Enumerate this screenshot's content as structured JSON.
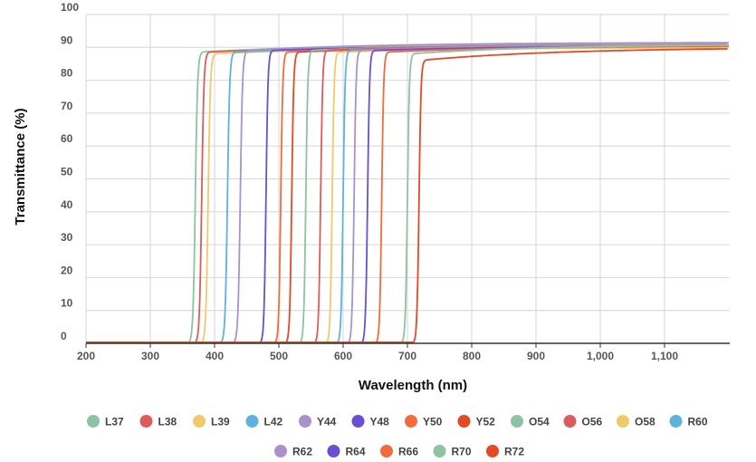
{
  "chart_data": {
    "type": "line",
    "xlabel": "Wavelength (nm)",
    "ylabel": "Transmittance (%)",
    "xlim": [
      170,
      1200
    ],
    "ylim": [
      0,
      100
    ],
    "x_ticks": [
      {
        "value": 200,
        "label": "200"
      },
      {
        "value": 300,
        "label": "300"
      },
      {
        "value": 400,
        "label": "400"
      },
      {
        "value": 500,
        "label": "500"
      },
      {
        "value": 600,
        "label": "600"
      },
      {
        "value": 700,
        "label": "700"
      },
      {
        "value": 800,
        "label": "800"
      },
      {
        "value": 900,
        "label": "900"
      },
      {
        "value": 1000,
        "label": "1,000"
      },
      {
        "value": 1100,
        "label": "1,100"
      }
    ],
    "y_ticks": [
      {
        "value": 0,
        "label": "0"
      },
      {
        "value": 10,
        "label": "10"
      },
      {
        "value": 20,
        "label": "20"
      },
      {
        "value": 30,
        "label": "30"
      },
      {
        "value": 40,
        "label": "40"
      },
      {
        "value": 50,
        "label": "50"
      },
      {
        "value": 60,
        "label": "60"
      },
      {
        "value": 70,
        "label": "70"
      },
      {
        "value": 80,
        "label": "80"
      },
      {
        "value": 90,
        "label": "90"
      },
      {
        "value": 100,
        "label": "100"
      }
    ],
    "grid": true,
    "legend_position": "bottom",
    "series": [
      {
        "name": "L37",
        "color": "#8dc3a3",
        "cutoff": 370,
        "width": 8,
        "plateau": 88.5,
        "max": 91
      },
      {
        "name": "L38",
        "color": "#dc5c5c",
        "cutoff": 380,
        "width": 8,
        "plateau": 88.5,
        "max": 90.5
      },
      {
        "name": "L39",
        "color": "#f2c96a",
        "cutoff": 390,
        "width": 8,
        "plateau": 88,
        "max": 90
      },
      {
        "name": "L42",
        "color": "#5eb2dc",
        "cutoff": 420,
        "width": 8,
        "plateau": 88.5,
        "max": 90.5
      },
      {
        "name": "Y44",
        "color": "#ab91c9",
        "cutoff": 440,
        "width": 8,
        "plateau": 89,
        "max": 91.5
      },
      {
        "name": "Y48",
        "color": "#6a4fd6",
        "cutoff": 480,
        "width": 7,
        "plateau": 89,
        "max": 90.5
      },
      {
        "name": "Y50",
        "color": "#f26b3f",
        "cutoff": 503,
        "width": 7,
        "plateau": 88.5,
        "max": 90.5
      },
      {
        "name": "Y52",
        "color": "#e24a26",
        "cutoff": 520,
        "width": 7,
        "plateau": 88.5,
        "max": 90.5
      },
      {
        "name": "O54",
        "color": "#8dc3a3",
        "cutoff": 542,
        "width": 7,
        "plateau": 89,
        "max": 91
      },
      {
        "name": "O56",
        "color": "#dc5c5c",
        "cutoff": 565,
        "width": 7,
        "plateau": 89,
        "max": 91
      },
      {
        "name": "O58",
        "color": "#f2c96a",
        "cutoff": 583,
        "width": 7,
        "plateau": 88.5,
        "max": 90
      },
      {
        "name": "R60",
        "color": "#5eb2dc",
        "cutoff": 600,
        "width": 7,
        "plateau": 89,
        "max": 90.5
      },
      {
        "name": "R62",
        "color": "#ab91c9",
        "cutoff": 617,
        "width": 7,
        "plateau": 89,
        "max": 91
      },
      {
        "name": "R64",
        "color": "#6a4fd6",
        "cutoff": 638,
        "width": 7,
        "plateau": 89,
        "max": 90.5
      },
      {
        "name": "R66",
        "color": "#f26b3f",
        "cutoff": 660,
        "width": 7,
        "plateau": 88.5,
        "max": 90.5
      },
      {
        "name": "R70",
        "color": "#8dc3a3",
        "cutoff": 700,
        "width": 7,
        "plateau": 88,
        "max": 91
      },
      {
        "name": "R72",
        "color": "#e24a26",
        "cutoff": 718,
        "width": 7,
        "plateau": 86,
        "max": 90
      }
    ]
  }
}
